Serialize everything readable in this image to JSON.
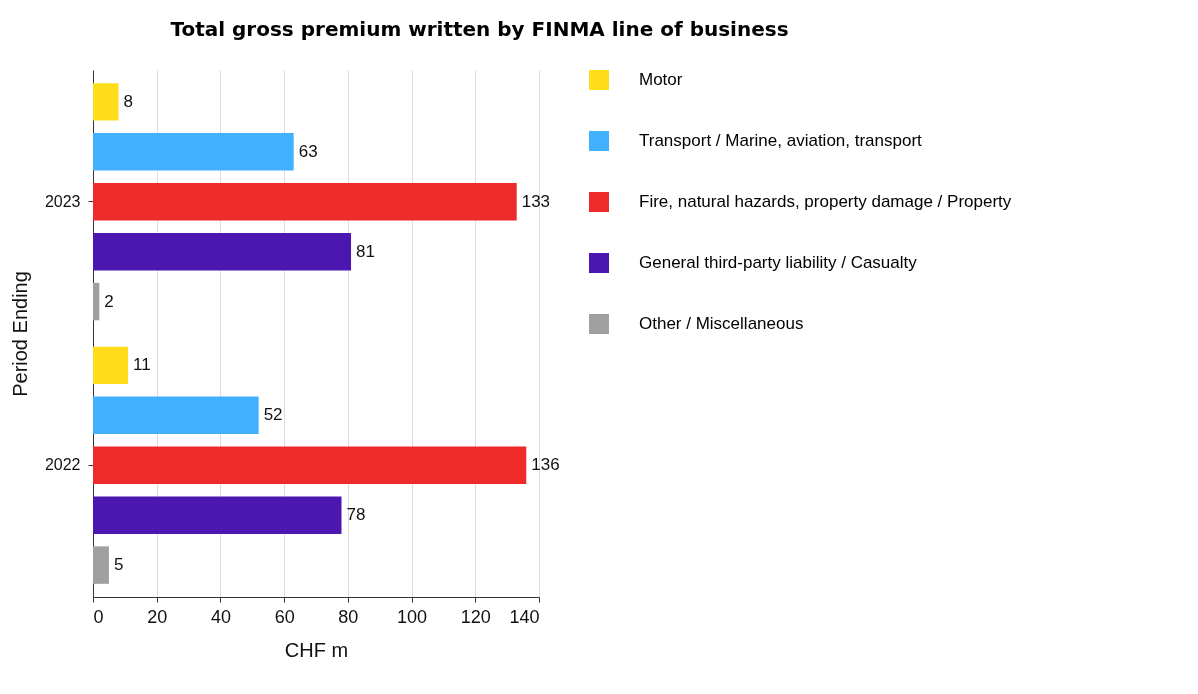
{
  "chart_data": {
    "type": "bar",
    "orientation": "horizontal",
    "title": "Total gross premium written by FINMA line of business",
    "xlabel": "CHF m",
    "ylabel": "Period Ending",
    "categories": [
      "2023",
      "2022"
    ],
    "series": [
      {
        "name": "Motor",
        "color": "#ffdd1b",
        "values": [
          8,
          11
        ]
      },
      {
        "name": "Transport  / Marine, aviation, transport",
        "color": "#40b0ff",
        "values": [
          63,
          52
        ]
      },
      {
        "name": "Fire, natural hazards, property damage / Property",
        "color": "#ee2a2a",
        "values": [
          133,
          136
        ]
      },
      {
        "name": "General third-party liability / Casualty",
        "color": "#4b17b0",
        "values": [
          81,
          78
        ]
      },
      {
        "name": "Other / Miscellaneous",
        "color": "#a0a0a0",
        "values": [
          2,
          5
        ]
      }
    ],
    "xlim": [
      0,
      140
    ],
    "xticks": [
      0,
      20,
      40,
      60,
      80,
      100,
      120,
      140
    ],
    "grid": "x",
    "legend": "right",
    "data_labels": true
  }
}
